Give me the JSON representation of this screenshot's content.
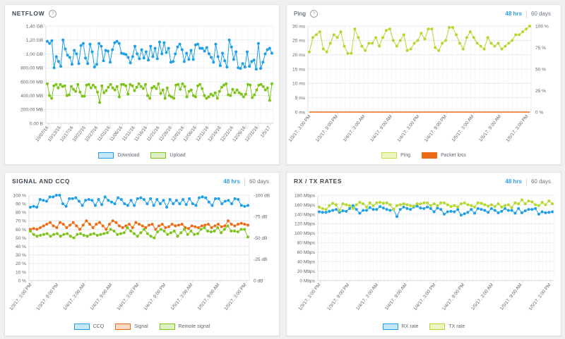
{
  "panels": {
    "netflow": {
      "title": "NETFLOW"
    },
    "ping": {
      "title": "Ping",
      "range_48": "48 hrs",
      "range_60": "60 days"
    },
    "signal": {
      "title": "SIGNAL AND CCQ",
      "range_48": "48 hrs",
      "range_60": "60 days"
    },
    "rxtx": {
      "title": "RX / TX RATES",
      "range_48": "48 hrs",
      "range_60": "60 days"
    }
  },
  "colors": {
    "blue": "#1e9fe8",
    "green": "#7dc41a",
    "lime": "#b5d82e",
    "orange": "#f06a14"
  },
  "chart_data": [
    {
      "id": "netflow",
      "type": "line",
      "x_labels": [
        "10/07/16",
        "10/13/16",
        "10/17/16",
        "10/22/16",
        "10/27/16",
        "11/01/16",
        "11/06/16",
        "11/11/16",
        "11/16/16",
        "11/21/16",
        "11/26/16",
        "12/01/16",
        "12/06/16",
        "12/11/16",
        "12/16/16",
        "12/21/16",
        "12/26/16",
        "12/31/16",
        "1/5/17"
      ],
      "y_ticks": [
        "0,00 B",
        "200,00 MB",
        "400,00 MB",
        "600,00 MB",
        "800,00 MB",
        "1,00 GB",
        "1,20 GB",
        "1,40 GB"
      ],
      "ylim_mb": [
        0,
        1400
      ],
      "series": [
        {
          "name": "Download",
          "color": "#1e9fe8",
          "values": [
            1180,
            1150,
            1190,
            800,
            960,
            890,
            820,
            1200,
            1070,
            980,
            950,
            850,
            1050,
            1000,
            860,
            1120,
            1150,
            940,
            860,
            1140,
            1030,
            810,
            850,
            1150,
            1110,
            900,
            1050,
            1040,
            880,
            1060,
            1160,
            1180,
            1150,
            1010,
            1000,
            990,
            950,
            870,
            960,
            1110,
            1000,
            930,
            1060,
            940,
            1030,
            910,
            1110,
            960,
            1080,
            930,
            1170,
            1000,
            1160,
            1020,
            1080,
            880,
            890,
            1000,
            1100,
            1140,
            1060,
            890,
            1010,
            920,
            1050,
            920,
            1130,
            1140,
            1080,
            1080,
            1040,
            1090,
            1000,
            950,
            880,
            1140,
            960,
            830,
            1010,
            900,
            810,
            1200,
            1100,
            920,
            1030,
            800,
            790,
            860,
            810,
            1030,
            820,
            890,
            910,
            780,
            1150,
            790,
            880,
            1000,
            1060,
            1080,
            1010
          ]
        },
        {
          "name": "Upload",
          "color": "#7dc41a",
          "values": [
            570,
            400,
            360,
            540,
            560,
            510,
            560,
            530,
            540,
            400,
            410,
            530,
            490,
            460,
            560,
            450,
            390,
            390,
            550,
            560,
            510,
            550,
            520,
            450,
            300,
            540,
            440,
            470,
            520,
            560,
            510,
            480,
            530,
            380,
            560,
            560,
            540,
            420,
            560,
            540,
            470,
            520,
            570,
            530,
            500,
            560,
            400,
            360,
            510,
            530,
            500,
            570,
            430,
            480,
            360,
            510,
            400,
            380,
            360,
            550,
            560,
            490,
            570,
            530,
            380,
            460,
            480,
            400,
            380,
            540,
            560,
            500,
            400,
            360,
            380,
            420,
            400,
            440,
            360,
            460,
            520,
            550,
            570,
            410,
            400,
            490,
            440,
            480,
            440,
            420,
            380,
            420,
            560,
            550,
            370,
            410,
            480,
            550,
            560,
            530,
            480,
            510,
            330,
            570
          ]
        }
      ]
    },
    {
      "id": "ping",
      "type": "line",
      "x_labels": [
        "1/3/17, 3:00 PM",
        "1/3/17, 9:00 PM",
        "1/4/17, 3:00 AM",
        "1/4/17, 9:00 AM",
        "1/4/17, 3:00 PM",
        "1/4/17, 9:00 PM",
        "1/5/17, 3:00 AM",
        "1/5/17, 9:00 AM",
        "1/5/17, 3:00 PM"
      ],
      "y_ticks_left": [
        "0 ms",
        "5 ms",
        "10 ms",
        "15 ms",
        "20 ms",
        "25 ms",
        "30 ms"
      ],
      "y_ticks_right": [
        "0 %",
        "25 %",
        "50 %",
        "75 %",
        "100 %"
      ],
      "ylim_ms": [
        0,
        30
      ],
      "series": [
        {
          "name": "Ping",
          "color": "#b5d82e",
          "values": [
            21,
            26,
            27,
            28,
            22,
            21,
            24,
            27,
            26,
            28,
            23,
            20.5,
            20.5,
            29,
            26,
            23,
            21.5,
            24,
            24,
            26,
            23,
            26,
            28.5,
            29,
            25,
            23,
            25,
            27,
            21.5,
            22,
            24,
            25,
            27.5,
            25.5,
            29,
            29,
            22.5,
            21.5,
            24,
            25,
            29.5,
            29.5,
            27,
            24,
            22,
            26,
            28,
            26,
            24,
            23,
            22,
            26,
            24,
            23,
            24,
            22,
            23,
            24,
            25,
            27,
            27,
            28,
            29,
            30
          ]
        },
        {
          "name": "Packet loss",
          "color": "#f06a14",
          "values": [
            0,
            0,
            0,
            0,
            0,
            0,
            0,
            0,
            0,
            0,
            0,
            0,
            0,
            0,
            0,
            0,
            0,
            0,
            0,
            0,
            0,
            0,
            0,
            0,
            0,
            0,
            0,
            0,
            0,
            0,
            0,
            0,
            0,
            0,
            0,
            0,
            0,
            0,
            0,
            0,
            0,
            0,
            0,
            0,
            0,
            0,
            0,
            0,
            0,
            0,
            0,
            0,
            0,
            0,
            0,
            0,
            0,
            0,
            0,
            0,
            0,
            0,
            0,
            0
          ]
        }
      ]
    },
    {
      "id": "signal",
      "type": "line",
      "x_labels": [
        "1/3/17, 3:00 PM",
        "1/3/17, 9:00 PM",
        "1/4/17, 3:00 AM",
        "1/4/17, 9:00 AM",
        "1/4/17, 3:00 PM",
        "1/4/17, 9:00 PM",
        "1/5/17, 3:00 AM",
        "1/5/17, 9:00 AM",
        "1/5/17, 3:00 PM"
      ],
      "y_ticks_left": [
        "0 %",
        "10 %",
        "20 %",
        "30 %",
        "40 %",
        "50 %",
        "60 %",
        "70 %",
        "80 %",
        "90 %",
        "100 %"
      ],
      "y_ticks_right": [
        "0 dB",
        "-25 dB",
        "-50 dB",
        "-75 dB",
        "-100 dB"
      ],
      "ylim_pct": [
        0,
        100
      ],
      "series": [
        {
          "name": "CCQ",
          "color": "#1e9fe8",
          "values": [
            86,
            87,
            86,
            95,
            94,
            93,
            98,
            98,
            100,
            100,
            90,
            87,
            96,
            96,
            97,
            93,
            88,
            94,
            95,
            94,
            88,
            95,
            89,
            98,
            94,
            92,
            90,
            97,
            95,
            90,
            88,
            94,
            88,
            96,
            97,
            95,
            90,
            96,
            88,
            95,
            90,
            94,
            86,
            95,
            90,
            94,
            90,
            95,
            89,
            96,
            90,
            88,
            97,
            98,
            97,
            92,
            88,
            96,
            96,
            90,
            93,
            94,
            90,
            96,
            95,
            88,
            87,
            88
          ]
        },
        {
          "name": "Signal",
          "color": "#f06a14",
          "values": [
            60,
            61,
            60,
            62,
            64,
            66,
            68,
            64,
            62,
            68,
            66,
            62,
            65,
            68,
            64,
            60,
            65,
            70,
            66,
            62,
            66,
            68,
            64,
            60,
            66,
            70,
            68,
            64,
            62,
            64,
            66,
            62,
            68,
            66,
            64,
            62,
            65,
            66,
            60,
            64,
            66,
            62,
            63,
            66,
            64,
            65,
            66,
            62,
            61,
            64,
            63,
            62,
            64,
            65,
            66,
            62,
            64,
            66,
            63,
            64,
            70,
            66,
            64,
            66,
            67,
            66,
            65
          ]
        },
        {
          "name": "Remote signal",
          "color": "#7dc41a",
          "values": [
            58,
            54,
            52,
            53,
            54,
            55,
            52,
            54,
            55,
            52,
            54,
            55,
            52,
            50,
            54,
            55,
            53,
            52,
            54,
            55,
            53,
            54,
            55,
            56,
            60,
            58,
            54,
            55,
            56,
            62,
            58,
            55,
            52,
            56,
            60,
            55,
            52,
            50,
            57,
            60,
            58,
            54,
            56,
            58,
            52,
            56,
            60,
            54,
            58,
            54,
            55,
            60,
            62,
            58,
            57,
            58,
            62,
            56,
            60,
            64,
            58,
            58,
            57,
            60,
            60,
            51
          ]
        }
      ]
    },
    {
      "id": "rxtx",
      "type": "line",
      "x_labels": [
        "1/3/17, 3:00 PM",
        "1/3/17, 9:00 PM",
        "1/4/17, 3:00 AM",
        "1/4/17, 9:00 AM",
        "1/4/17, 3:00 PM",
        "1/4/17, 9:00 PM",
        "1/5/17, 3:00 AM",
        "1/5/17, 9:00 AM",
        "1/5/17, 3:00 PM"
      ],
      "y_ticks": [
        "0 Mbps",
        "20 Mbps",
        "40 Mbps",
        "60 Mbps",
        "80 Mbps",
        "100 Mbps",
        "120 Mbps",
        "140 Mbps",
        "160 Mbps",
        "180 Mbps"
      ],
      "ylim_mbps": [
        0,
        180
      ],
      "series": [
        {
          "name": "RX rate",
          "color": "#1e9fe8",
          "values": [
            145,
            144,
            144,
            146,
            148,
            150,
            144,
            147,
            146,
            152,
            158,
            150,
            142,
            148,
            148,
            154,
            150,
            150,
            156,
            153,
            150,
            148,
            150,
            135,
            150,
            155,
            152,
            150,
            155,
            157,
            153,
            152,
            155,
            152,
            145,
            153,
            150,
            140,
            145,
            146,
            145,
            150,
            138,
            141,
            144,
            150,
            142,
            152,
            150,
            148,
            144,
            152,
            148,
            143,
            146,
            152,
            148,
            148,
            142,
            152,
            143,
            147,
            150,
            150,
            152,
            140,
            145,
            143,
            144,
            145
          ]
        },
        {
          "name": "TX rate",
          "color": "#b5d82e",
          "values": [
            155,
            152,
            150,
            158,
            163,
            160,
            148,
            162,
            160,
            158,
            152,
            160,
            165,
            162,
            155,
            164,
            158,
            164,
            165,
            163,
            164,
            160,
            150,
            158,
            160,
            162,
            160,
            158,
            157,
            162,
            162,
            164,
            164,
            158,
            162,
            158,
            164,
            164,
            160,
            156,
            158,
            155,
            162,
            164,
            160,
            158,
            155,
            164,
            163,
            160,
            157,
            160,
            156,
            162,
            155,
            158,
            160,
            154,
            164,
            162,
            170,
            162,
            168,
            166,
            160,
            158,
            165,
            160,
            168,
            162
          ]
        }
      ]
    }
  ]
}
